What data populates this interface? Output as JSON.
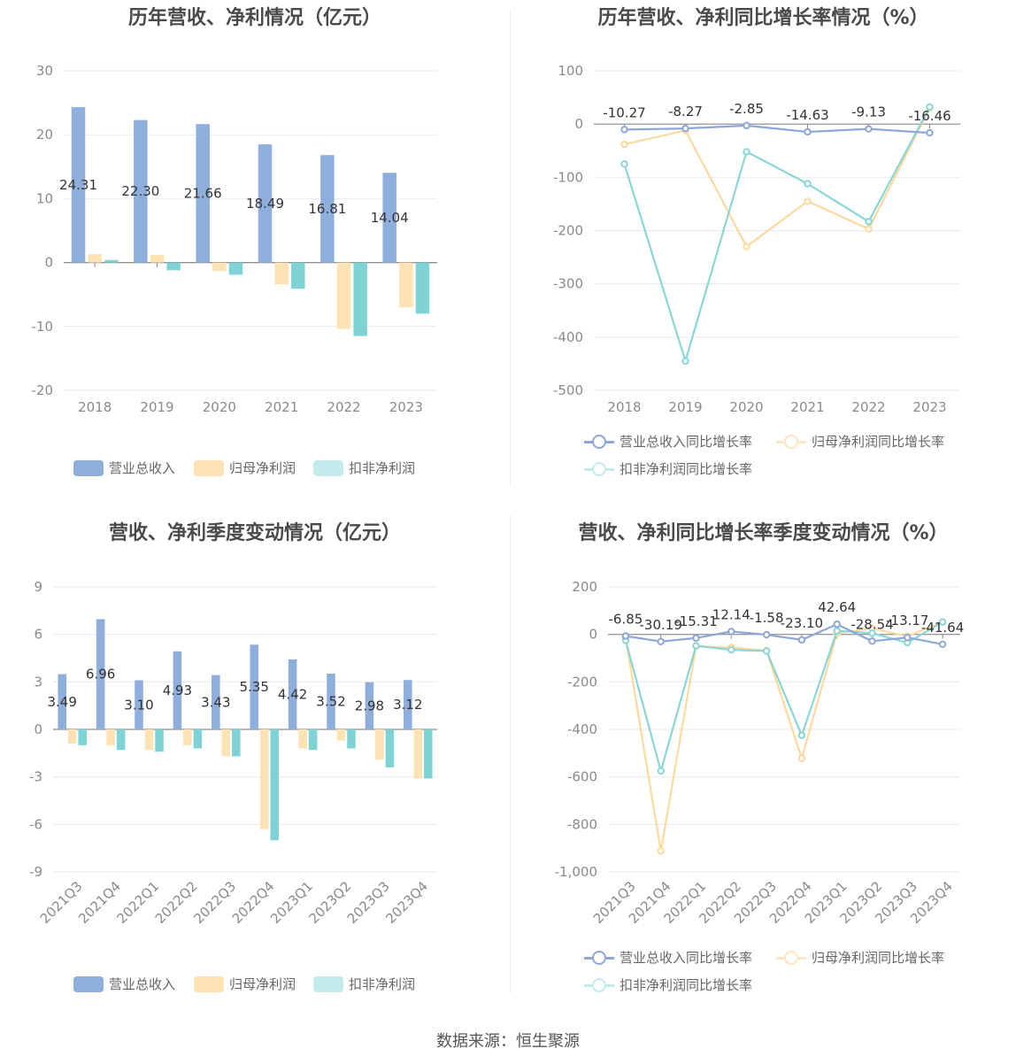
{
  "colors": {
    "revenue": "#8eaedc",
    "net_profit": "#fde2b4",
    "deducted_profit": "#7fd3d4",
    "revenue_line": "#8ea6d8",
    "net_profit_line": "#fcd9a0",
    "deducted_line": "#8ad5d6",
    "grid": "#e8eaf2",
    "axis": "#8a8a8a"
  },
  "legend_labels": {
    "revenue": "营业总收入",
    "net_profit": "归母净利润",
    "deducted_profit": "扣非净利润",
    "revenue_growth": "营业总收入同比增长率",
    "net_profit_growth": "归母净利润同比增长率",
    "deducted_growth": "扣非净利润同比增长率"
  },
  "source": "数据来源：恒生聚源",
  "chart_data": [
    {
      "id": "annual_amount",
      "type": "bar",
      "title": "历年营收、净利情况（亿元）",
      "categories": [
        "2018",
        "2019",
        "2020",
        "2021",
        "2022",
        "2023"
      ],
      "ylim": [
        -20,
        30
      ],
      "yticks": [
        30,
        20,
        10,
        0,
        -10,
        -20
      ],
      "series": [
        {
          "name": "营业总收入",
          "values": [
            24.31,
            22.3,
            21.66,
            18.49,
            16.81,
            14.04
          ],
          "labels": [
            "24.31",
            "22.30",
            "21.66",
            "18.49",
            "16.81",
            "14.04"
          ]
        },
        {
          "name": "归母净利润",
          "values": [
            1.3,
            1.2,
            -1.3,
            -3.4,
            -10.4,
            -7.0
          ]
        },
        {
          "name": "扣非净利润",
          "values": [
            0.4,
            -1.2,
            -1.9,
            -4.1,
            -11.5,
            -8.0
          ]
        }
      ]
    },
    {
      "id": "annual_growth",
      "type": "line",
      "title": "历年营收、净利同比增长率情况（%）",
      "categories": [
        "2018",
        "2019",
        "2020",
        "2021",
        "2022",
        "2023"
      ],
      "ylim": [
        -500,
        100
      ],
      "yticks": [
        100,
        0,
        -100,
        -200,
        -300,
        -400,
        -500
      ],
      "series": [
        {
          "name": "营业总收入同比增长率",
          "values": [
            -10.27,
            -8.27,
            -2.85,
            -14.63,
            -9.13,
            -16.46
          ],
          "labels": [
            "-10.27",
            "-8.27",
            "-2.85",
            "-14.63",
            "-9.13",
            "-16.46"
          ]
        },
        {
          "name": "归母净利润同比增长率",
          "values": [
            -38,
            -12,
            -230,
            -145,
            -197,
            30
          ]
        },
        {
          "name": "扣非净利润同比增长率",
          "values": [
            -75,
            -445,
            -52,
            -112,
            -183,
            32
          ]
        }
      ]
    },
    {
      "id": "quarterly_amount",
      "type": "bar",
      "title": "营收、净利季度变动情况（亿元）",
      "categories": [
        "2021Q3",
        "2021Q4",
        "2022Q1",
        "2022Q2",
        "2022Q3",
        "2022Q4",
        "2023Q1",
        "2023Q2",
        "2023Q3",
        "2023Q4"
      ],
      "ylim": [
        -9,
        9
      ],
      "yticks": [
        9,
        6,
        3,
        0,
        -3,
        -6,
        -9
      ],
      "series": [
        {
          "name": "营业总收入",
          "values": [
            3.49,
            6.96,
            3.1,
            4.93,
            3.43,
            5.35,
            4.42,
            3.52,
            2.98,
            3.12
          ],
          "labels": [
            "3.49",
            "6.96",
            "3.10",
            "4.93",
            "3.43",
            "5.35",
            "4.42",
            "3.52",
            "2.98",
            "3.12"
          ]
        },
        {
          "name": "归母净利润",
          "values": [
            -0.9,
            -1.0,
            -1.3,
            -1.0,
            -1.7,
            -6.3,
            -1.2,
            -0.7,
            -1.9,
            -3.1
          ]
        },
        {
          "name": "扣非净利润",
          "values": [
            -1.0,
            -1.3,
            -1.4,
            -1.2,
            -1.7,
            -7.0,
            -1.3,
            -1.2,
            -2.4,
            -3.1
          ]
        }
      ]
    },
    {
      "id": "quarterly_growth",
      "type": "line",
      "title": "营收、净利同比增长率季度变动情况（%）",
      "categories": [
        "2021Q3",
        "2021Q4",
        "2022Q1",
        "2022Q2",
        "2022Q3",
        "2022Q4",
        "2023Q1",
        "2023Q2",
        "2023Q3",
        "2023Q4"
      ],
      "ylim": [
        -1000,
        200
      ],
      "yticks": [
        200,
        0,
        -200,
        -400,
        -600,
        -800,
        -1000
      ],
      "ytick_labels": [
        "200",
        "0",
        "-200",
        "-400",
        "-600",
        "-800",
        "-1,000"
      ],
      "series": [
        {
          "name": "营业总收入同比增长率",
          "values": [
            -6.85,
            -30.19,
            -15.31,
            12.14,
            -1.58,
            -23.1,
            42.64,
            -28.54,
            -13.17,
            -41.64
          ],
          "labels": [
            "-6.85",
            "-30.19",
            "-15.31",
            "12.14",
            "-1.58",
            "-23.10",
            "42.64",
            "-28.54",
            "-13.17",
            "-41.64"
          ]
        },
        {
          "name": "归母净利润同比增长率",
          "values": [
            -15,
            -912,
            -50,
            -55,
            -68,
            -522,
            5,
            25,
            -8,
            52
          ]
        },
        {
          "name": "扣非净利润同比增长率",
          "values": [
            -25,
            -575,
            -48,
            -65,
            -70,
            -425,
            15,
            5,
            -35,
            52
          ]
        }
      ]
    }
  ]
}
